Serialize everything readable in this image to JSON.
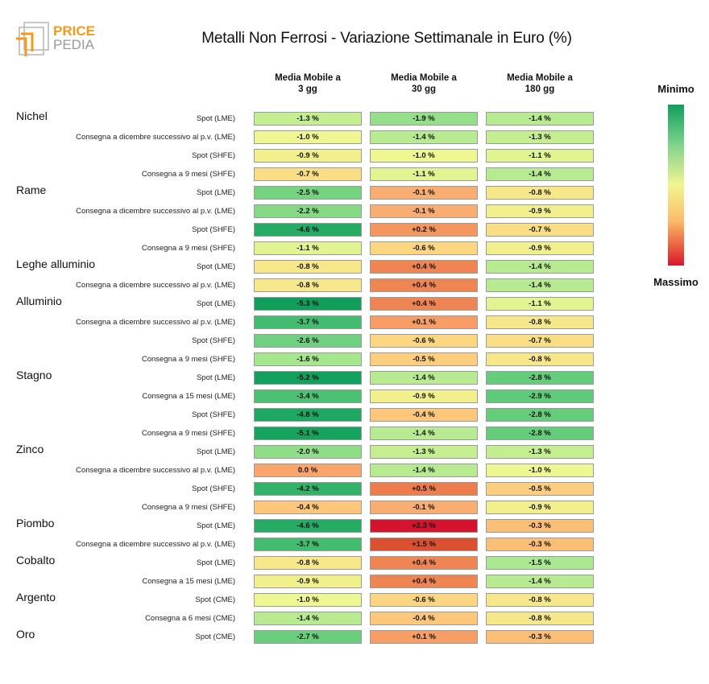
{
  "logo": {
    "line1": "PRICE",
    "line2": "PEDIA"
  },
  "chart_data": {
    "type": "heatmap",
    "title": "Metalli Non Ferrosi - Variazione Settimanale in Euro (%)",
    "columns": [
      {
        "line1": "Media Mobile a",
        "line2": "3 gg"
      },
      {
        "line1": "Media Mobile a",
        "line2": "30 gg"
      },
      {
        "line1": "Media Mobile a",
        "line2": "180 gg"
      }
    ],
    "legend": {
      "min_label": "Minimo",
      "max_label": "Massimo"
    },
    "rows": [
      {
        "group": "Nichel",
        "label": "Spot (LME)",
        "values": [
          -1.3,
          -1.9,
          -1.4
        ],
        "texts": [
          "-1.3 %",
          "-1.9 %",
          "-1.4 %"
        ]
      },
      {
        "group": "",
        "label": "Consegna a dicembre successivo al p.v. (LME)",
        "values": [
          -1.0,
          -1.4,
          -1.3
        ],
        "texts": [
          "-1.0 %",
          "-1.4 %",
          "-1.3 %"
        ]
      },
      {
        "group": "",
        "label": "Spot (SHFE)",
        "values": [
          -0.9,
          -1.0,
          -1.1
        ],
        "texts": [
          "-0.9 %",
          "-1.0 %",
          "-1.1 %"
        ]
      },
      {
        "group": "",
        "label": "Consegna a 9 mesi (SHFE)",
        "values": [
          -0.7,
          -1.1,
          -1.4
        ],
        "texts": [
          "-0.7 %",
          "-1.1 %",
          "-1.4 %"
        ]
      },
      {
        "group": "Rame",
        "label": "Spot (LME)",
        "values": [
          -2.5,
          -0.1,
          -0.8
        ],
        "texts": [
          "-2.5 %",
          "-0.1 %",
          "-0.8 %"
        ]
      },
      {
        "group": "",
        "label": "Consegna a dicembre successivo al p.v. (LME)",
        "values": [
          -2.2,
          -0.1,
          -0.9
        ],
        "texts": [
          "-2.2 %",
          "-0.1 %",
          "-0.9 %"
        ]
      },
      {
        "group": "",
        "label": "Spot (SHFE)",
        "values": [
          -4.6,
          0.2,
          -0.7
        ],
        "texts": [
          "-4.6 %",
          "+0.2 %",
          "-0.7 %"
        ]
      },
      {
        "group": "",
        "label": "Consegna a 9 mesi (SHFE)",
        "values": [
          -1.1,
          -0.6,
          -0.9
        ],
        "texts": [
          "-1.1 %",
          "-0.6 %",
          "-0.9 %"
        ]
      },
      {
        "group": "Leghe alluminio",
        "label": "Spot (LME)",
        "values": [
          -0.8,
          0.4,
          -1.4
        ],
        "texts": [
          "-0.8 %",
          "+0.4 %",
          "-1.4 %"
        ]
      },
      {
        "group": "",
        "label": "Consegna a dicembre successivo al p.v. (LME)",
        "values": [
          -0.8,
          0.4,
          -1.4
        ],
        "texts": [
          "-0.8 %",
          "+0.4 %",
          "-1.4 %"
        ]
      },
      {
        "group": "Alluminio",
        "label": "Spot (LME)",
        "values": [
          -5.3,
          0.4,
          -1.1
        ],
        "texts": [
          "-5.3 %",
          "+0.4 %",
          "-1.1 %"
        ]
      },
      {
        "group": "",
        "label": "Consegna a dicembre successivo al p.v. (LME)",
        "values": [
          -3.7,
          0.1,
          -0.8
        ],
        "texts": [
          "-3.7 %",
          "+0.1 %",
          "-0.8 %"
        ]
      },
      {
        "group": "",
        "label": "Spot (SHFE)",
        "values": [
          -2.6,
          -0.6,
          -0.7
        ],
        "texts": [
          "-2.6 %",
          "-0.6 %",
          "-0.7 %"
        ]
      },
      {
        "group": "",
        "label": "Consegna a 9 mesi (SHFE)",
        "values": [
          -1.6,
          -0.5,
          -0.8
        ],
        "texts": [
          "-1.6 %",
          "-0.5 %",
          "-0.8 %"
        ]
      },
      {
        "group": "Stagno",
        "label": "Spot (LME)",
        "values": [
          -5.2,
          -1.4,
          -2.8
        ],
        "texts": [
          "-5.2 %",
          "-1.4 %",
          "-2.8 %"
        ]
      },
      {
        "group": "",
        "label": "Consegna a 15 mesi (LME)",
        "values": [
          -3.4,
          -0.9,
          -2.9
        ],
        "texts": [
          "-3.4 %",
          "-0.9 %",
          "-2.9 %"
        ]
      },
      {
        "group": "",
        "label": "Spot (SHFE)",
        "values": [
          -4.8,
          -0.4,
          -2.8
        ],
        "texts": [
          "-4.8 %",
          "-0.4 %",
          "-2.8 %"
        ]
      },
      {
        "group": "",
        "label": "Consegna a 9 mesi (SHFE)",
        "values": [
          -5.1,
          -1.4,
          -2.8
        ],
        "texts": [
          "-5.1 %",
          "-1.4 %",
          "-2.8 %"
        ]
      },
      {
        "group": "Zinco",
        "label": "Spot (LME)",
        "values": [
          -2.0,
          -1.3,
          -1.3
        ],
        "texts": [
          "-2.0 %",
          "-1.3 %",
          "-1.3 %"
        ]
      },
      {
        "group": "",
        "label": "Consegna a dicembre successivo al p.v. (LME)",
        "values": [
          0.0,
          -1.4,
          -1.0
        ],
        "texts": [
          "0.0 %",
          "-1.4 %",
          "-1.0 %"
        ]
      },
      {
        "group": "",
        "label": "Spot (SHFE)",
        "values": [
          -4.2,
          0.5,
          -0.5
        ],
        "texts": [
          "-4.2 %",
          "+0.5 %",
          "-0.5 %"
        ]
      },
      {
        "group": "",
        "label": "Consegna a 9 mesi (SHFE)",
        "values": [
          -0.4,
          -0.1,
          -0.9
        ],
        "texts": [
          "-0.4 %",
          "-0.1 %",
          "-0.9 %"
        ]
      },
      {
        "group": "Piombo",
        "label": "Spot (LME)",
        "values": [
          -4.6,
          2.3,
          -0.3
        ],
        "texts": [
          "-4.6 %",
          "+2.3 %",
          "-0.3 %"
        ]
      },
      {
        "group": "",
        "label": "Consegna a dicembre successivo al p.v. (LME)",
        "values": [
          -3.7,
          1.5,
          -0.3
        ],
        "texts": [
          "-3.7 %",
          "+1.5 %",
          "-0.3 %"
        ]
      },
      {
        "group": "Cobalto",
        "label": "Spot (LME)",
        "values": [
          -0.8,
          0.4,
          -1.5
        ],
        "texts": [
          "-0.8 %",
          "+0.4 %",
          "-1.5 %"
        ]
      },
      {
        "group": "",
        "label": "Consegna a 15 mesi (LME)",
        "values": [
          -0.9,
          0.4,
          -1.4
        ],
        "texts": [
          "-0.9 %",
          "+0.4 %",
          "-1.4 %"
        ]
      },
      {
        "group": "Argento",
        "label": "Spot (CME)",
        "values": [
          -1.0,
          -0.6,
          -0.8
        ],
        "texts": [
          "-1.0 %",
          "-0.6 %",
          "-0.8 %"
        ]
      },
      {
        "group": "",
        "label": "Consegna a 6 mesi (CME)",
        "values": [
          -1.4,
          -0.4,
          -0.8
        ],
        "texts": [
          "-1.4 %",
          "-0.4 %",
          "-0.8 %"
        ]
      },
      {
        "group": "Oro",
        "label": "Spot (CME)",
        "values": [
          -2.7,
          0.1,
          -0.3
        ],
        "texts": [
          "-2.7 %",
          "+0.1 %",
          "-0.3 %"
        ]
      }
    ]
  }
}
